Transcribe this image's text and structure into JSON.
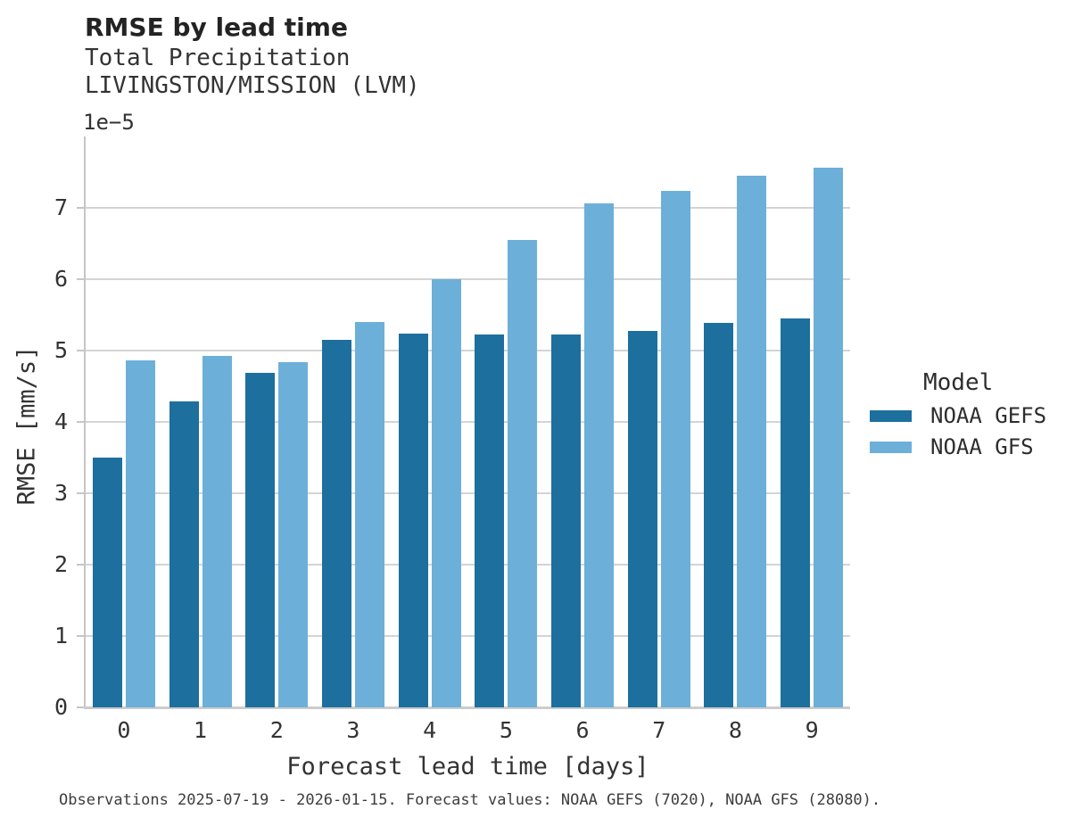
{
  "header": {
    "title": "RMSE by lead time",
    "subtitle_lines": [
      "Total Precipitation",
      "LIVINGSTON/MISSION (LVM)"
    ]
  },
  "legend": {
    "title": "Model"
  },
  "footer": {
    "text": "Observations 2025-07-19 - 2026-01-15. Forecast values: NOAA GEFS (7020), NOAA GFS (28080)."
  },
  "chart_data": {
    "type": "bar",
    "title": "RMSE by lead time",
    "subtitle": "Total Precipitation LIVINGSTON/MISSION (LVM)",
    "xlabel": "Forecast lead time [days]",
    "ylabel": "RMSE [mm/s]",
    "y_offset_label": "1e−5",
    "y_unit_scale": "1e-5",
    "categories": [
      "0",
      "1",
      "2",
      "3",
      "4",
      "5",
      "6",
      "7",
      "8",
      "9"
    ],
    "series": [
      {
        "name": "NOAA GEFS",
        "color": "#1d6f9e",
        "values": [
          3.5,
          4.29,
          4.69,
          5.15,
          5.24,
          5.23,
          5.23,
          5.28,
          5.39,
          5.45
        ]
      },
      {
        "name": "NOAA GFS",
        "color": "#6cb0d9",
        "values": [
          4.86,
          4.92,
          4.84,
          5.4,
          6.0,
          6.55,
          7.06,
          7.24,
          7.45,
          7.56
        ]
      }
    ],
    "ylim": [
      0,
      8.0
    ],
    "yticks": [
      0,
      1,
      2,
      3,
      4,
      5,
      6,
      7
    ],
    "grid": true,
    "grid_color": "#d4d4d4",
    "legend_position": "right",
    "legend_title": "Model"
  }
}
